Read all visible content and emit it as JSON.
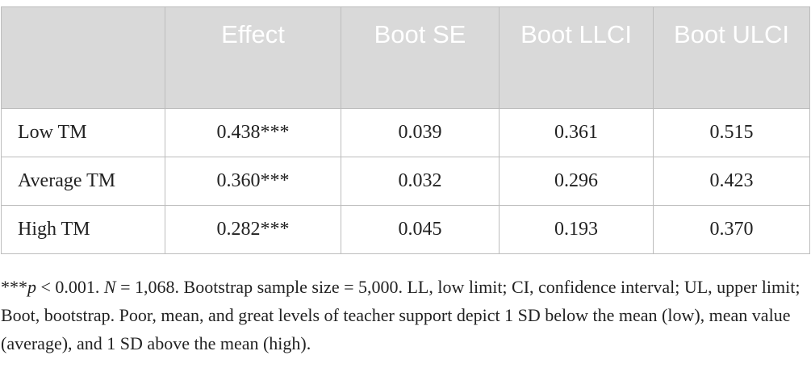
{
  "table": {
    "headers": [
      "",
      "Effect",
      "Boot SE",
      "Boot LLCI",
      "Boot ULCI"
    ],
    "rows": [
      [
        "Low TM",
        "0.438***",
        "0.039",
        "0.361",
        "0.515"
      ],
      [
        "Average TM",
        "0.360***",
        "0.032",
        "0.296",
        "0.423"
      ],
      [
        "High TM",
        "0.282***",
        "0.045",
        "0.193",
        "0.370"
      ]
    ]
  },
  "note": {
    "stars": "***",
    "p_symbol": "p",
    "p_text": " < 0.001. ",
    "n_symbol": "N",
    "rest": " = 1,068. Bootstrap sample size = 5,000. LL, low limit; CI, confidence interval; UL, upper limit; Boot, bootstrap. Poor, mean, and great levels of teacher support depict 1 SD below the mean (low), mean value (average), and 1 SD above the mean (high)."
  }
}
